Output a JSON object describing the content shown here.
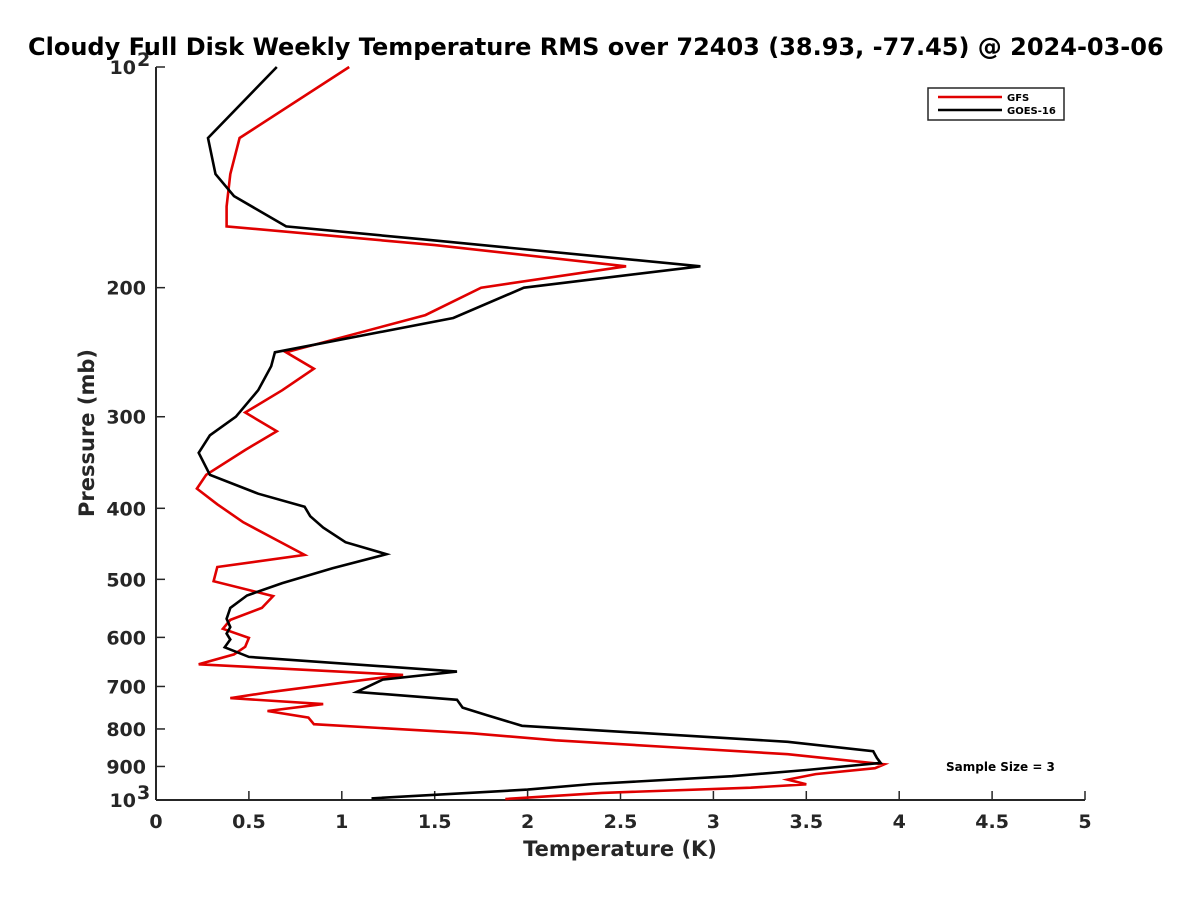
{
  "chart_data": {
    "type": "line",
    "title": "Cloudy Full Disk Weekly Temperature RMS over 72403 (38.93, -77.45) @ 2024-03-06",
    "xlabel": "Temperature (K)",
    "ylabel": "Pressure (mb)",
    "xlim": [
      0,
      5
    ],
    "ylim": [
      100,
      1000
    ],
    "y_scale": "log",
    "y_reversed": true,
    "grid": false,
    "legend_position": "top-right",
    "x_ticks": [
      0,
      0.5,
      1,
      1.5,
      2,
      2.5,
      3,
      3.5,
      4,
      4.5,
      5
    ],
    "x_tick_labels": [
      "0",
      "0.5",
      "1",
      "1.5",
      "2",
      "2.5",
      "3",
      "3.5",
      "4",
      "4.5",
      "5"
    ],
    "y_ticks": [
      {
        "value": 100,
        "base": "10",
        "exp": "2"
      },
      {
        "value": 200,
        "label": "200"
      },
      {
        "value": 300,
        "label": "300"
      },
      {
        "value": 400,
        "label": "400"
      },
      {
        "value": 500,
        "label": "500"
      },
      {
        "value": 600,
        "label": "600"
      },
      {
        "value": 700,
        "label": "700"
      },
      {
        "value": 800,
        "label": "800"
      },
      {
        "value": 900,
        "label": "900"
      },
      {
        "value": 1000,
        "base": "10",
        "exp": "3"
      }
    ],
    "annotation": "Sample Size = 3",
    "series": [
      {
        "name": "GFS",
        "color": "#e00000",
        "points": [
          [
            1.04,
            100
          ],
          [
            0.45,
            125
          ],
          [
            0.4,
            140
          ],
          [
            0.38,
            155
          ],
          [
            0.38,
            165
          ],
          [
            1.5,
            175
          ],
          [
            2.53,
            187
          ],
          [
            1.75,
            200
          ],
          [
            1.45,
            218
          ],
          [
            0.7,
            245
          ],
          [
            0.85,
            258
          ],
          [
            0.68,
            276
          ],
          [
            0.48,
            296
          ],
          [
            0.65,
            314
          ],
          [
            0.48,
            333
          ],
          [
            0.27,
            360
          ],
          [
            0.22,
            376
          ],
          [
            0.33,
            395
          ],
          [
            0.47,
            418
          ],
          [
            0.65,
            442
          ],
          [
            0.8,
            463
          ],
          [
            0.33,
            481
          ],
          [
            0.31,
            503
          ],
          [
            0.63,
            527
          ],
          [
            0.57,
            547
          ],
          [
            0.4,
            568
          ],
          [
            0.36,
            584
          ],
          [
            0.5,
            601
          ],
          [
            0.48,
            618
          ],
          [
            0.42,
            633
          ],
          [
            0.23,
            653
          ],
          [
            1.33,
            675
          ],
          [
            1.0,
            692
          ],
          [
            0.62,
            712
          ],
          [
            0.4,
            726
          ],
          [
            0.9,
            740
          ],
          [
            0.6,
            756
          ],
          [
            0.82,
            772
          ],
          [
            0.85,
            788
          ],
          [
            1.7,
            811
          ],
          [
            2.15,
            829
          ],
          [
            2.8,
            848
          ],
          [
            3.4,
            866
          ],
          [
            3.92,
            894
          ],
          [
            3.87,
            905
          ],
          [
            3.55,
            922
          ],
          [
            3.4,
            938
          ],
          [
            3.5,
            952
          ],
          [
            3.2,
            962
          ],
          [
            2.4,
            978
          ],
          [
            1.88,
            997
          ]
        ]
      },
      {
        "name": "GOES-16",
        "color": "#000000",
        "points": [
          [
            0.65,
            100
          ],
          [
            0.28,
            125
          ],
          [
            0.32,
            140
          ],
          [
            0.42,
            150
          ],
          [
            0.7,
            165
          ],
          [
            1.45,
            172
          ],
          [
            2.93,
            187
          ],
          [
            1.98,
            200
          ],
          [
            1.6,
            220
          ],
          [
            0.64,
            245
          ],
          [
            0.62,
            256
          ],
          [
            0.55,
            276
          ],
          [
            0.43,
            300
          ],
          [
            0.29,
            318
          ],
          [
            0.23,
            336
          ],
          [
            0.29,
            360
          ],
          [
            0.55,
            382
          ],
          [
            0.8,
            398
          ],
          [
            0.83,
            410
          ],
          [
            0.9,
            425
          ],
          [
            1.02,
            445
          ],
          [
            1.24,
            462
          ],
          [
            0.95,
            483
          ],
          [
            0.68,
            506
          ],
          [
            0.49,
            526
          ],
          [
            0.4,
            547
          ],
          [
            0.38,
            566
          ],
          [
            0.4,
            581
          ],
          [
            0.38,
            593
          ],
          [
            0.4,
            604
          ],
          [
            0.37,
            619
          ],
          [
            0.5,
            638
          ],
          [
            1.62,
            668
          ],
          [
            1.22,
            685
          ],
          [
            1.08,
            712
          ],
          [
            1.62,
            730
          ],
          [
            1.65,
            748
          ],
          [
            1.78,
            766
          ],
          [
            1.97,
            792
          ],
          [
            3.4,
            833
          ],
          [
            3.86,
            858
          ],
          [
            3.88,
            876
          ],
          [
            3.9,
            890
          ],
          [
            3.5,
            910
          ],
          [
            3.1,
            928
          ],
          [
            2.35,
            951
          ],
          [
            2.0,
            968
          ],
          [
            1.16,
            995
          ]
        ]
      }
    ]
  }
}
